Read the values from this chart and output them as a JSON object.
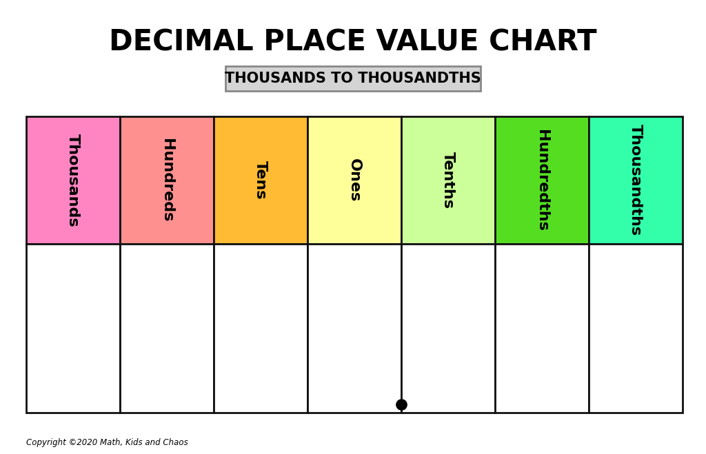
{
  "title": "DECIMAL PLACE VALUE CHART",
  "subtitle": "THOUSANDS TO THOUSANDTHS",
  "columns": [
    "Thousands",
    "Hundreds",
    "Tens",
    "Ones",
    "Tenths",
    "Hundredths",
    "Thousandths"
  ],
  "colors": [
    "#FF85C2",
    "#FF9090",
    "#FFBB33",
    "#FFFF99",
    "#CCFF99",
    "#55DD22",
    "#33FFAA"
  ],
  "background": "#FFFFFF",
  "border_color": "#111111",
  "text_color": "#000000",
  "copyright": "Copyright ©2020 Math, Kids and Chaos",
  "decimal_dot_column": 3,
  "title_fontsize": 30,
  "subtitle_fontsize": 15,
  "col_label_fontsize": 16,
  "copyright_fontsize": 8.5
}
